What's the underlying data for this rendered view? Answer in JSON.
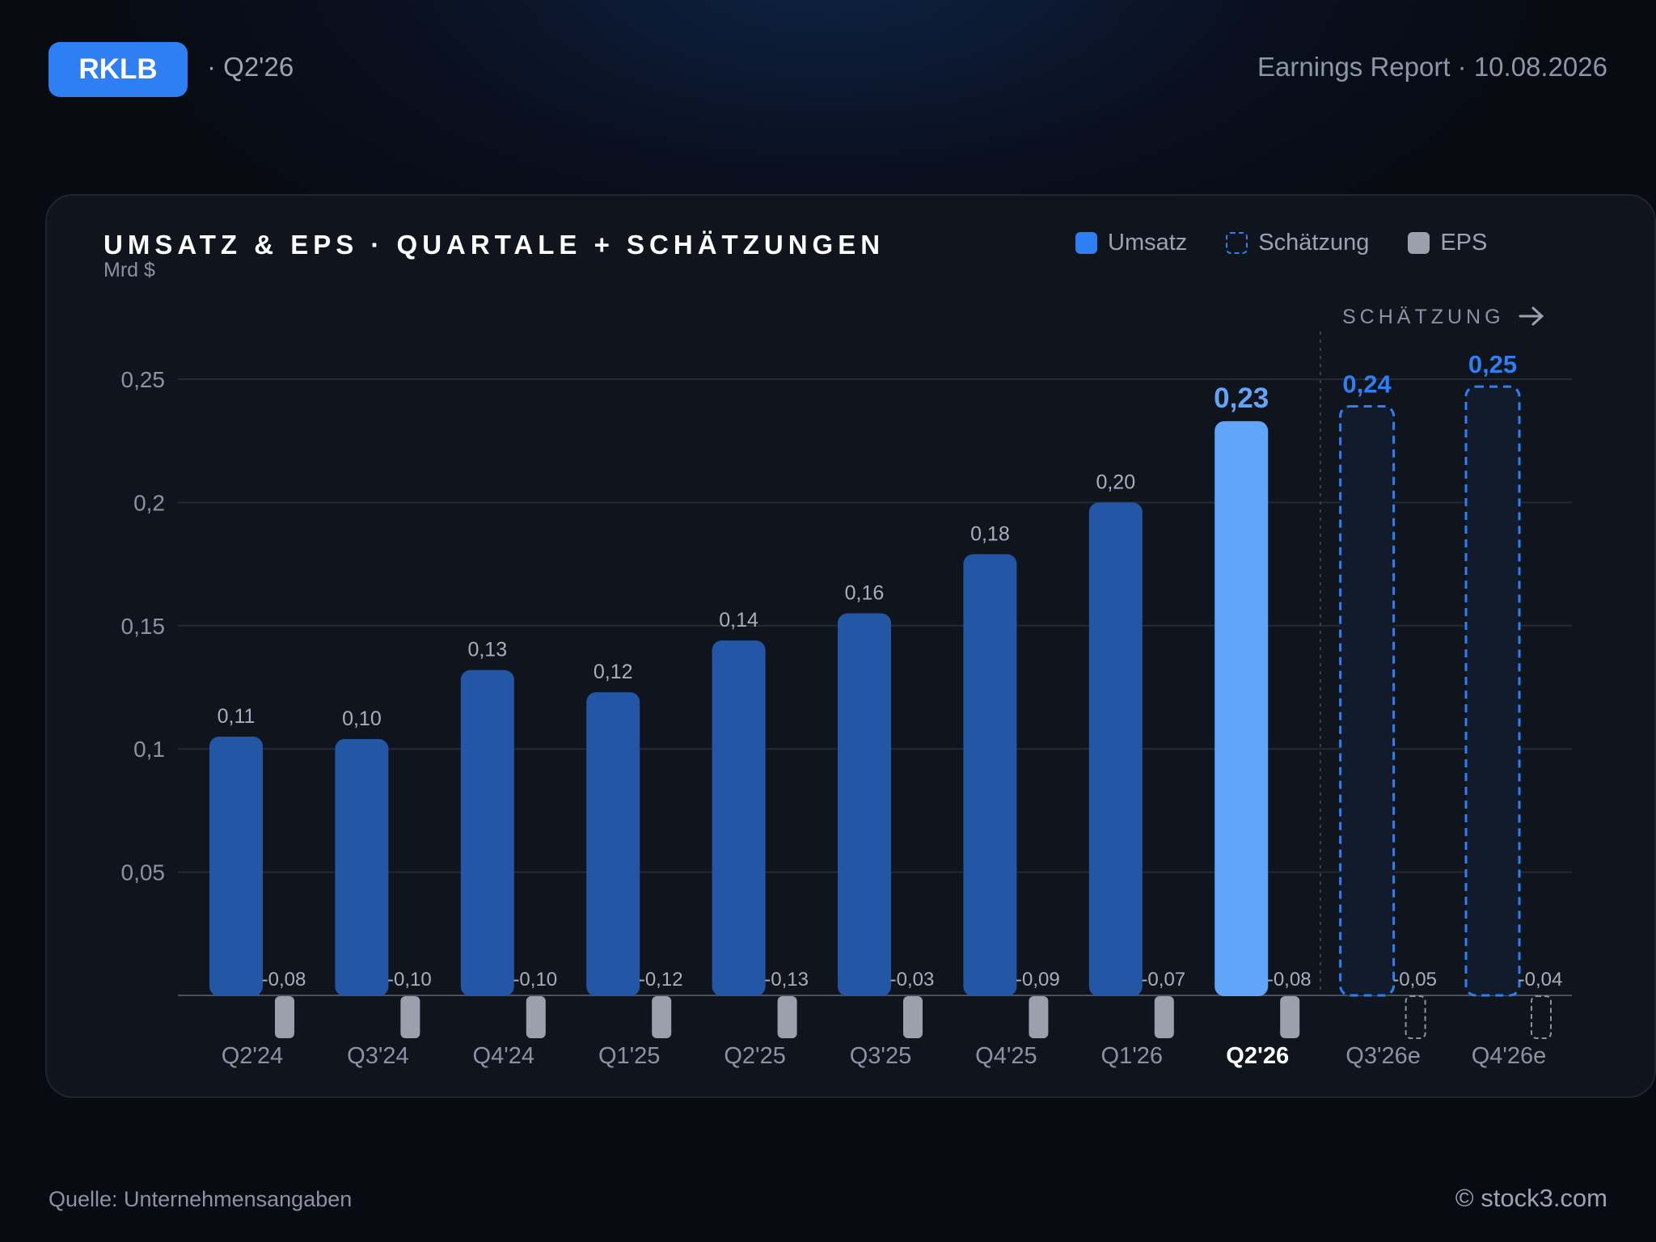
{
  "header": {
    "ticker": "RKLB",
    "quarter": "· Q2'26",
    "report": "Earnings Report · 10.08.2026"
  },
  "chart_header": {
    "title": "UMSATZ & EPS · QUARTALE + SCHÄTZUNGEN",
    "unit": "Mrd $"
  },
  "legend": {
    "revenue": "Umsatz",
    "estimate": "Schätzung",
    "eps": "EPS"
  },
  "estimate_marker": "SCHÄTZUNG",
  "colors": {
    "revenue": "#2456a6",
    "revenue_current": "#60a5fa",
    "estimate": "#2d7ff3",
    "eps": "#9aa1ad"
  },
  "chart_data": {
    "type": "bar",
    "categories": [
      "Q2'24",
      "Q3'24",
      "Q4'24",
      "Q1'25",
      "Q2'25",
      "Q3'25",
      "Q4'25",
      "Q1'26",
      "Q2'26",
      "Q3'26e",
      "Q4'26e"
    ],
    "ylabel": "Mrd $",
    "ylim": [
      0,
      0.27
    ],
    "yticks": [
      0.05,
      0.1,
      0.15,
      0.2,
      0.25
    ],
    "ytick_labels": [
      "0,05",
      "0,1",
      "0,15",
      "0,2",
      "0,25"
    ],
    "grid": true,
    "legend_position": "top-right",
    "highlight_index": 8,
    "estimate_start_index": 9,
    "series": [
      {
        "name": "Umsatz",
        "values": [
          0.105,
          0.104,
          0.132,
          0.123,
          0.144,
          0.155,
          0.179,
          0.2,
          0.233,
          0.239,
          0.247
        ],
        "labels": [
          "0,11",
          "0,10",
          "0,13",
          "0,12",
          "0,14",
          "0,16",
          "0,18",
          "0,20",
          "0,23",
          "0,24",
          "0,25"
        ]
      },
      {
        "name": "EPS",
        "values": [
          -0.08,
          -0.1,
          -0.1,
          -0.12,
          -0.13,
          -0.03,
          -0.09,
          -0.07,
          -0.08,
          -0.05,
          -0.04
        ],
        "labels": [
          "-0,08",
          "-0,10",
          "-0,10",
          "-0,12",
          "-0,13",
          "-0,03",
          "-0,09",
          "-0,07",
          "-0,08",
          "-0,05",
          "-0,04"
        ]
      }
    ]
  },
  "footer": {
    "source": "Quelle: Unternehmensangaben",
    "brand": "© stock3.com"
  }
}
